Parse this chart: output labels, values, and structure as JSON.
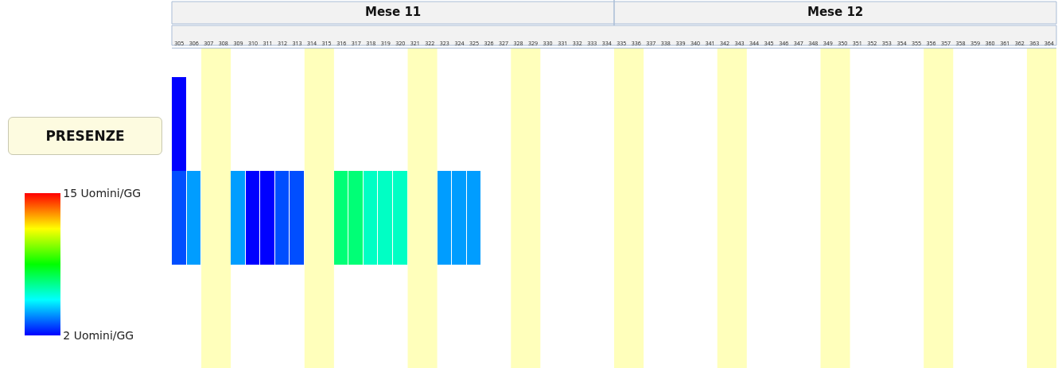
{
  "chart_data": {
    "type": "heatmap",
    "categories": [
      "305",
      "306",
      "307",
      "308",
      "309",
      "310",
      "311",
      "312",
      "313",
      "314",
      "315",
      "316",
      "317",
      "318",
      "319",
      "320",
      "321",
      "322",
      "323",
      "324",
      "325",
      "326",
      "327",
      "328",
      "329",
      "330",
      "331",
      "332",
      "333",
      "334",
      "335",
      "336",
      "337",
      "338",
      "339",
      "340",
      "341",
      "342",
      "343",
      "344",
      "345",
      "346",
      "347",
      "348",
      "349",
      "350",
      "351",
      "352",
      "353",
      "354",
      "355",
      "356",
      "357",
      "358",
      "359",
      "360",
      "361",
      "362",
      "363",
      "364"
    ],
    "y_categories": [
      null,
      "PRESENZE"
    ],
    "cells": [
      [
        2,
        null,
        null,
        null,
        null,
        null,
        null,
        null,
        null,
        null,
        null,
        null,
        null,
        null,
        null,
        null,
        null,
        null,
        null,
        null,
        null,
        null,
        null,
        null,
        null,
        null,
        null,
        null,
        null,
        null,
        null,
        null,
        null,
        null,
        null,
        null,
        null,
        null,
        null,
        null,
        null,
        null,
        null,
        null,
        null,
        null,
        null,
        null,
        null,
        null,
        null,
        null,
        null,
        null,
        null,
        null,
        null,
        null,
        null,
        null
      ],
      [
        3,
        4,
        null,
        null,
        4,
        2,
        2,
        3,
        3,
        null,
        null,
        7,
        7,
        6,
        6,
        6,
        null,
        null,
        4,
        4,
        4,
        null,
        null,
        null,
        null,
        null,
        null,
        null,
        null,
        null,
        null,
        null,
        null,
        null,
        null,
        null,
        null,
        null,
        null,
        null,
        null,
        null,
        null,
        null,
        null,
        null,
        null,
        null,
        null,
        null,
        null,
        null,
        null,
        null,
        null,
        null,
        null,
        null,
        null,
        null
      ]
    ],
    "clim": [
      2,
      15
    ],
    "cticks": [
      {
        "value": 2,
        "label": "2 Uomini/GG"
      },
      {
        "value": 15,
        "label": "15 Uomini/GG"
      }
    ],
    "bands": [
      {
        "axis": "x",
        "from": "307",
        "to": "308",
        "color": "#ffffbb"
      },
      {
        "axis": "x",
        "from": "314",
        "to": "315",
        "color": "#ffffbb"
      },
      {
        "axis": "x",
        "from": "321",
        "to": "322",
        "color": "#ffffbb"
      },
      {
        "axis": "x",
        "from": "328",
        "to": "329",
        "color": "#ffffbb"
      },
      {
        "axis": "x",
        "from": "335",
        "to": "336",
        "color": "#ffffbb"
      },
      {
        "axis": "x",
        "from": "342",
        "to": "343",
        "color": "#ffffbb"
      },
      {
        "axis": "x",
        "from": "349",
        "to": "350",
        "color": "#ffffbb"
      },
      {
        "axis": "x",
        "from": "356",
        "to": "357",
        "color": "#ffffbb"
      },
      {
        "axis": "x",
        "from": "363",
        "to": "364",
        "color": "#ffffbb"
      }
    ],
    "annotations": [
      "Mese 11",
      "Mese 12"
    ]
  }
}
